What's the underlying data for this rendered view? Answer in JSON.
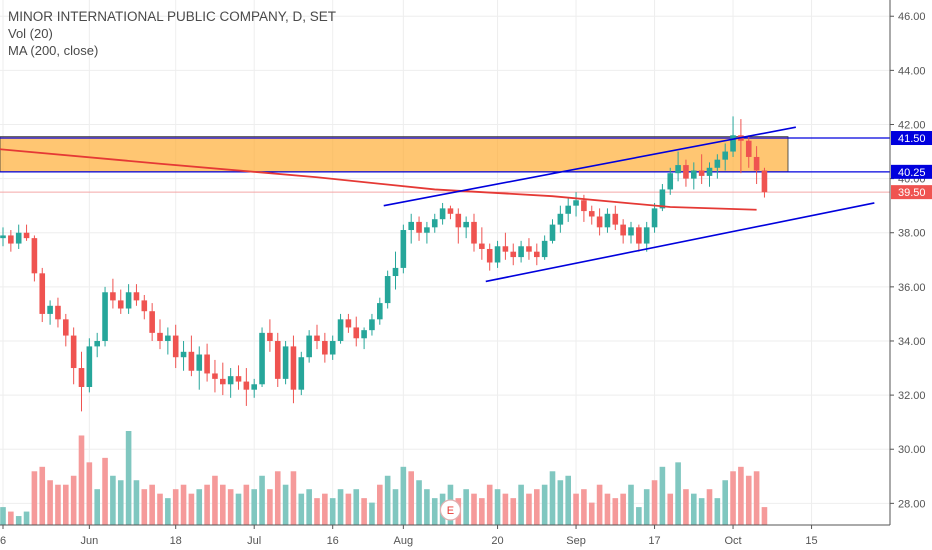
{
  "legend": {
    "title": "MINOR INTERNATIONAL PUBLIC COMPANY, D, SET",
    "vol": "Vol (20)",
    "ma": "MA (200, close)"
  },
  "colors": {
    "up": "#26a69a",
    "down": "#ef5350",
    "vol_up": "#80c7c0",
    "vol_down": "#f59a9a",
    "ma": "#e53935",
    "trendline": "#0000dd",
    "zone": "#ffa726",
    "grid": "#eeeeee"
  },
  "chart_data": {
    "type": "candlestick",
    "y_ticks": [
      "46.00",
      "44.00",
      "42.00",
      "40.00",
      "38.00",
      "36.00",
      "34.00",
      "32.00",
      "30.00",
      "28.00"
    ],
    "ylim": [
      27.2,
      46.6
    ],
    "x_ticks": [
      {
        "label": "6",
        "index": 0
      },
      {
        "label": "Jun",
        "index": 11
      },
      {
        "label": "18",
        "index": 22
      },
      {
        "label": "Jul",
        "index": 32
      },
      {
        "label": "16",
        "index": 42
      },
      {
        "label": "Aug",
        "index": 51
      },
      {
        "label": "20",
        "index": 63
      },
      {
        "label": "Sep",
        "index": 73
      },
      {
        "label": "17",
        "index": 83
      },
      {
        "label": "Oct",
        "index": 93
      },
      {
        "label": "15",
        "index": 103
      }
    ],
    "price_labels": [
      {
        "value": 41.5,
        "text": "41.50",
        "style": "line"
      },
      {
        "value": 40.25,
        "text": "40.25",
        "style": "line"
      },
      {
        "value": 39.5,
        "text": "39.50",
        "style": "last"
      }
    ],
    "resistance_zone": {
      "from": 40.25,
      "to": 41.55,
      "end_index": 100
    },
    "trendlines": [
      {
        "from": {
          "index": 48.5,
          "price": 39.0
        },
        "to": {
          "index": 101,
          "price": 41.9
        }
      },
      {
        "from": {
          "index": 61.5,
          "price": 36.2
        },
        "to": {
          "index": 111,
          "price": 39.1
        }
      }
    ],
    "event_marker": {
      "index": 57,
      "label": "E"
    },
    "ma200": [
      {
        "index": -1,
        "price": 41.1
      },
      {
        "index": 20,
        "price": 40.55
      },
      {
        "index": 40,
        "price": 40.05
      },
      {
        "index": 55,
        "price": 39.6
      },
      {
        "index": 70,
        "price": 39.35
      },
      {
        "index": 85,
        "price": 38.95
      },
      {
        "index": 96,
        "price": 38.85
      }
    ],
    "candles": [
      [
        37.8,
        38.2,
        37.5,
        37.9
      ],
      [
        37.9,
        38.1,
        37.3,
        37.6
      ],
      [
        37.6,
        38.3,
        37.4,
        38.0
      ],
      [
        38.0,
        38.3,
        37.7,
        37.8
      ],
      [
        37.8,
        37.9,
        36.2,
        36.5
      ],
      [
        36.5,
        36.7,
        34.7,
        35.0
      ],
      [
        35.0,
        35.5,
        34.6,
        35.3
      ],
      [
        35.3,
        35.6,
        34.5,
        34.8
      ],
      [
        34.8,
        35.0,
        33.8,
        34.2
      ],
      [
        34.2,
        34.5,
        32.4,
        33.0
      ],
      [
        33.0,
        33.6,
        31.4,
        32.3
      ],
      [
        32.3,
        34.1,
        32.1,
        33.8
      ],
      [
        33.8,
        34.3,
        33.4,
        34.0
      ],
      [
        34.0,
        36.0,
        33.8,
        35.8
      ],
      [
        35.8,
        36.3,
        35.2,
        35.5
      ],
      [
        35.5,
        35.9,
        35.0,
        35.2
      ],
      [
        35.2,
        36.1,
        35.0,
        35.8
      ],
      [
        35.8,
        36.1,
        35.3,
        35.5
      ],
      [
        35.5,
        35.7,
        34.8,
        35.1
      ],
      [
        35.1,
        35.4,
        34.0,
        34.3
      ],
      [
        34.3,
        34.8,
        33.7,
        34.0
      ],
      [
        34.0,
        34.5,
        33.5,
        34.2
      ],
      [
        34.2,
        34.6,
        33.0,
        33.4
      ],
      [
        33.4,
        34.0,
        32.9,
        33.6
      ],
      [
        33.6,
        34.2,
        32.7,
        32.9
      ],
      [
        32.9,
        33.8,
        32.2,
        33.5
      ],
      [
        33.5,
        33.9,
        32.5,
        32.8
      ],
      [
        32.8,
        33.3,
        32.1,
        32.6
      ],
      [
        32.6,
        33.2,
        32.0,
        32.4
      ],
      [
        32.4,
        33.0,
        31.9,
        32.7
      ],
      [
        32.7,
        33.1,
        32.2,
        32.5
      ],
      [
        32.5,
        33.0,
        31.6,
        32.2
      ],
      [
        32.2,
        32.6,
        31.9,
        32.4
      ],
      [
        32.4,
        34.5,
        32.3,
        34.3
      ],
      [
        34.3,
        34.8,
        33.6,
        34.0
      ],
      [
        34.0,
        34.3,
        32.3,
        32.6
      ],
      [
        32.6,
        34.0,
        32.4,
        33.8
      ],
      [
        33.8,
        34.2,
        31.7,
        32.2
      ],
      [
        32.2,
        33.6,
        32.0,
        33.4
      ],
      [
        33.4,
        34.4,
        33.2,
        34.2
      ],
      [
        34.2,
        34.6,
        33.7,
        34.0
      ],
      [
        34.0,
        34.3,
        33.2,
        33.5
      ],
      [
        33.5,
        34.2,
        33.3,
        34.0
      ],
      [
        34.0,
        35.0,
        33.9,
        34.8
      ],
      [
        34.8,
        35.0,
        34.3,
        34.5
      ],
      [
        34.5,
        34.9,
        33.8,
        34.1
      ],
      [
        34.1,
        34.5,
        33.7,
        34.4
      ],
      [
        34.4,
        35.0,
        34.2,
        34.8
      ],
      [
        34.8,
        35.6,
        34.6,
        35.4
      ],
      [
        35.4,
        36.6,
        35.2,
        36.4
      ],
      [
        36.4,
        37.3,
        35.9,
        36.7
      ],
      [
        36.7,
        38.3,
        36.5,
        38.1
      ],
      [
        38.1,
        38.7,
        37.6,
        38.4
      ],
      [
        38.4,
        38.6,
        37.7,
        38.0
      ],
      [
        38.0,
        38.4,
        37.6,
        38.2
      ],
      [
        38.2,
        38.7,
        38.0,
        38.5
      ],
      [
        38.5,
        39.1,
        38.3,
        38.9
      ],
      [
        38.9,
        39.0,
        38.5,
        38.7
      ],
      [
        38.7,
        38.9,
        37.6,
        38.2
      ],
      [
        38.2,
        38.6,
        37.8,
        38.4
      ],
      [
        38.4,
        38.7,
        37.3,
        37.6
      ],
      [
        37.6,
        38.2,
        37.0,
        37.4
      ],
      [
        37.4,
        37.6,
        36.6,
        36.9
      ],
      [
        36.9,
        37.7,
        36.7,
        37.5
      ],
      [
        37.5,
        38.0,
        37.0,
        37.3
      ],
      [
        37.3,
        37.6,
        36.8,
        37.1
      ],
      [
        37.1,
        37.7,
        36.9,
        37.5
      ],
      [
        37.5,
        37.8,
        37.0,
        37.3
      ],
      [
        37.3,
        37.6,
        36.8,
        37.1
      ],
      [
        37.1,
        37.9,
        37.0,
        37.7
      ],
      [
        37.7,
        38.5,
        37.6,
        38.3
      ],
      [
        38.3,
        39.0,
        38.0,
        38.7
      ],
      [
        38.7,
        39.3,
        38.4,
        39.0
      ],
      [
        39.0,
        39.5,
        38.6,
        39.2
      ],
      [
        39.2,
        39.4,
        38.4,
        38.8
      ],
      [
        38.8,
        39.0,
        38.3,
        38.6
      ],
      [
        38.6,
        38.9,
        37.9,
        38.2
      ],
      [
        38.2,
        38.9,
        38.0,
        38.7
      ],
      [
        38.7,
        39.0,
        38.1,
        38.3
      ],
      [
        38.3,
        38.5,
        37.6,
        37.9
      ],
      [
        37.9,
        38.4,
        37.6,
        38.2
      ],
      [
        38.2,
        38.3,
        37.3,
        37.6
      ],
      [
        37.6,
        38.4,
        37.3,
        38.2
      ],
      [
        38.2,
        39.1,
        38.0,
        38.9
      ],
      [
        38.9,
        39.8,
        38.8,
        39.6
      ],
      [
        39.6,
        40.4,
        39.4,
        40.2
      ],
      [
        40.2,
        41.0,
        39.9,
        40.5
      ],
      [
        40.5,
        40.7,
        39.7,
        40.0
      ],
      [
        40.0,
        40.6,
        39.6,
        40.3
      ],
      [
        40.3,
        40.9,
        39.8,
        40.1
      ],
      [
        40.1,
        40.6,
        39.7,
        40.4
      ],
      [
        40.4,
        40.9,
        40.0,
        40.7
      ],
      [
        40.7,
        41.3,
        40.3,
        41.0
      ],
      [
        41.0,
        42.3,
        40.8,
        41.6
      ],
      [
        41.6,
        42.2,
        40.2,
        41.4
      ],
      [
        41.4,
        41.6,
        40.4,
        40.8
      ],
      [
        40.8,
        41.2,
        39.8,
        40.3
      ],
      [
        40.3,
        40.4,
        39.3,
        39.5
      ]
    ],
    "volume": [
      [
        4,
        0
      ],
      [
        3,
        1
      ],
      [
        2,
        0
      ],
      [
        3,
        0
      ],
      [
        12,
        1
      ],
      [
        13,
        1
      ],
      [
        10,
        1
      ],
      [
        9,
        1
      ],
      [
        9,
        1
      ],
      [
        11,
        1
      ],
      [
        20,
        1
      ],
      [
        14,
        1
      ],
      [
        8,
        0
      ],
      [
        15,
        1
      ],
      [
        11,
        0
      ],
      [
        10,
        0
      ],
      [
        21,
        0
      ],
      [
        10,
        0
      ],
      [
        8,
        1
      ],
      [
        9,
        1
      ],
      [
        7,
        1
      ],
      [
        6,
        0
      ],
      [
        8,
        1
      ],
      [
        9,
        1
      ],
      [
        7,
        1
      ],
      [
        8,
        0
      ],
      [
        9,
        1
      ],
      [
        11,
        1
      ],
      [
        9,
        1
      ],
      [
        8,
        1
      ],
      [
        7,
        0
      ],
      [
        9,
        1
      ],
      [
        8,
        0
      ],
      [
        11,
        0
      ],
      [
        8,
        1
      ],
      [
        12,
        1
      ],
      [
        9,
        0
      ],
      [
        12,
        1
      ],
      [
        7,
        0
      ],
      [
        8,
        0
      ],
      [
        6,
        1
      ],
      [
        7,
        1
      ],
      [
        6,
        0
      ],
      [
        8,
        0
      ],
      [
        7,
        1
      ],
      [
        8,
        0
      ],
      [
        6,
        1
      ],
      [
        5,
        0
      ],
      [
        9,
        1
      ],
      [
        11,
        0
      ],
      [
        8,
        0
      ],
      [
        13,
        0
      ],
      [
        12,
        1
      ],
      [
        10,
        0
      ],
      [
        8,
        0
      ],
      [
        6,
        0
      ],
      [
        7,
        0
      ],
      [
        9,
        0
      ],
      [
        6,
        1
      ],
      [
        8,
        0
      ],
      [
        7,
        1
      ],
      [
        6,
        1
      ],
      [
        9,
        1
      ],
      [
        8,
        0
      ],
      [
        7,
        1
      ],
      [
        6,
        1
      ],
      [
        9,
        0
      ],
      [
        7,
        1
      ],
      [
        8,
        1
      ],
      [
        9,
        0
      ],
      [
        12,
        0
      ],
      [
        10,
        0
      ],
      [
        11,
        0
      ],
      [
        7,
        1
      ],
      [
        8,
        1
      ],
      [
        5,
        1
      ],
      [
        9,
        1
      ],
      [
        7,
        1
      ],
      [
        6,
        1
      ],
      [
        7,
        1
      ],
      [
        9,
        0
      ],
      [
        4,
        0
      ],
      [
        8,
        0
      ],
      [
        10,
        1
      ],
      [
        13,
        0
      ],
      [
        7,
        1
      ],
      [
        14,
        0
      ],
      [
        8,
        1
      ],
      [
        7,
        0
      ],
      [
        6,
        0
      ],
      [
        8,
        1
      ],
      [
        6,
        0
      ],
      [
        10,
        0
      ],
      [
        12,
        1
      ],
      [
        13,
        1
      ],
      [
        11,
        1
      ],
      [
        12,
        1
      ],
      [
        4,
        1
      ]
    ]
  }
}
